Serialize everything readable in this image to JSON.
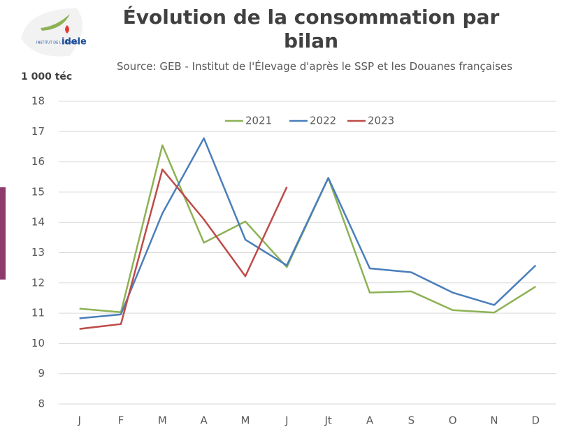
{
  "chart_data": {
    "type": "line",
    "title": "Évolution de la consommation par bilan",
    "subtitle": "Source: GEB - Institut de l'Élevage d'après le SSP et les Douanes françaises",
    "y_label": "1 000 téc",
    "logo": {
      "small": "INSTITUT DE L'ÉLEVAGE",
      "name": "idele"
    },
    "categories": [
      "J",
      "F",
      "M",
      "A",
      "M",
      "J",
      "Jt",
      "A",
      "S",
      "O",
      "N",
      "D"
    ],
    "series": [
      {
        "name": "2021",
        "color": "#8db255",
        "values": [
          11.15,
          11.03,
          16.55,
          13.33,
          14.03,
          12.52,
          15.47,
          11.68,
          11.72,
          11.1,
          11.02,
          11.88
        ]
      },
      {
        "name": "2022",
        "color": "#4a7ebb",
        "values": [
          10.83,
          10.96,
          14.3,
          16.78,
          13.43,
          12.58,
          15.47,
          12.48,
          12.35,
          11.68,
          11.27,
          12.58
        ]
      },
      {
        "name": "2023",
        "color": "#be4b48",
        "values": [
          10.48,
          10.64,
          15.75,
          14.1,
          12.22,
          15.17,
          null,
          null,
          null,
          null,
          null,
          null
        ]
      }
    ],
    "ylim": [
      8,
      18
    ],
    "yticks": [
      8,
      9,
      10,
      11,
      12,
      13,
      14,
      15,
      16,
      17,
      18
    ],
    "grid": true,
    "legend": "top"
  }
}
